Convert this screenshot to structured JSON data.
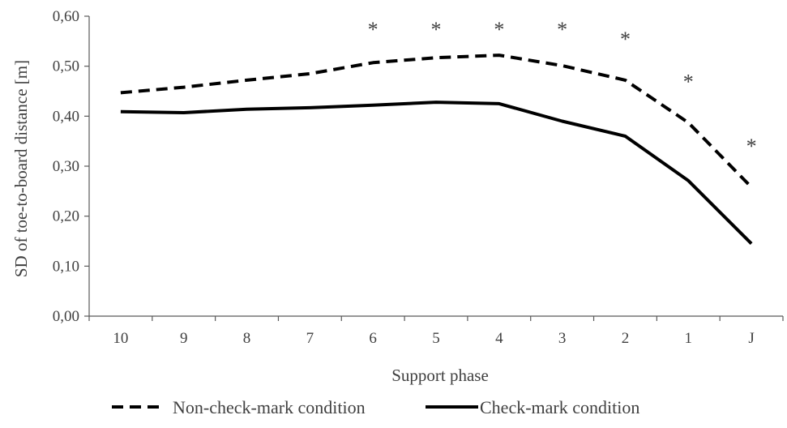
{
  "chart_data": {
    "type": "line",
    "categories": [
      "10",
      "9",
      "8",
      "7",
      "6",
      "5",
      "4",
      "3",
      "2",
      "1",
      "J"
    ],
    "series": [
      {
        "name": "Non-check-mark condition",
        "values": [
          0.447,
          0.458,
          0.472,
          0.485,
          0.507,
          0.517,
          0.522,
          0.501,
          0.472,
          0.387,
          0.258
        ],
        "style": "dashed",
        "color": "#000000"
      },
      {
        "name": "Check-mark condition",
        "values": [
          0.409,
          0.407,
          0.414,
          0.417,
          0.422,
          0.428,
          0.425,
          0.39,
          0.36,
          0.271,
          0.145
        ],
        "style": "solid",
        "color": "#000000"
      }
    ],
    "significance_marker": "*",
    "significant_categories": [
      "6",
      "5",
      "4",
      "3",
      "2",
      "1",
      "J"
    ],
    "xlabel": "Support phase",
    "ylabel": "SD of toe-to-board distance [m]",
    "ylim": [
      0,
      0.6
    ],
    "yticks": [
      "0,00",
      "0,10",
      "0,20",
      "0,30",
      "0,40",
      "0,50",
      "0,60"
    ],
    "ytick_values": [
      0,
      0.1,
      0.2,
      0.3,
      0.4,
      0.5,
      0.6
    ],
    "grid": false,
    "legend_position": "bottom"
  }
}
